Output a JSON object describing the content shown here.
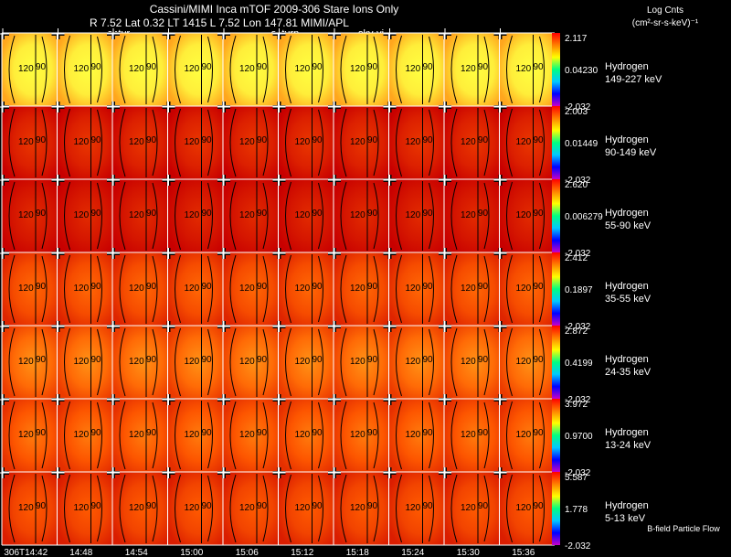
{
  "header": {
    "title": "Cassini/MIMI Inca mTOF  2009-306   Stare    Ions Only",
    "subtitle": "R       7.52 Lat 0.32 LT 1415 L        7.52 Lon          147.81   MIMI/APL",
    "overlay_words": [
      "satur",
      "saturn",
      "sky-vi"
    ],
    "units_title": "Log Cnts",
    "units_expr": "(cm²-sr-s-keV)⁻¹"
  },
  "chart_data": {
    "type": "heatmap",
    "title": "Cassini/MIMI Inca mTOF  2009-306   Stare    Ions Only",
    "species": "Hydrogen",
    "time_labels": [
      "306T14:42",
      "14:48",
      "14:54",
      "15:00",
      "15:06",
      "15:12",
      "15:18",
      "15:24",
      "15:30",
      "15:36"
    ],
    "panel_annotations": [
      "120",
      "90"
    ],
    "colors": {
      "hot": "#ffff40",
      "mid": "#ff5a00",
      "cold": "#c80000",
      "grid": "#ffffff",
      "contour": "#000000",
      "colorbar": [
        "#c800c8",
        "#0000ff",
        "#00c8ff",
        "#00ff80",
        "#ffff00",
        "#ff8000",
        "#ff0000"
      ]
    },
    "rows": [
      {
        "species": "Hydrogen",
        "energy": "149-227 keV",
        "cmax": "2.117",
        "cmid": "0.04230",
        "cmin": "-2.032",
        "level": 0.95,
        "mirror_bias": 0.2
      },
      {
        "species": "Hydrogen",
        "energy": "90-149 keV",
        "cmax": "2.003",
        "cmid": "0.01449",
        "cmin": "-2.032",
        "level": 0.18,
        "mirror_bias": 0.0
      },
      {
        "species": "Hydrogen",
        "energy": "55-90 keV",
        "cmax": "2.620",
        "cmid": "0.006279",
        "cmin": "-2.032",
        "level": 0.12,
        "mirror_bias": -0.15
      },
      {
        "species": "Hydrogen",
        "energy": "35-55 keV",
        "cmax": "2.412",
        "cmid": "0.1897",
        "cmin": "-2.032",
        "level": 0.42,
        "mirror_bias": 0.0
      },
      {
        "species": "Hydrogen",
        "energy": "24-35 keV",
        "cmax": "2.872",
        "cmid": "0.4199",
        "cmin": "-2.032",
        "level": 0.55,
        "mirror_bias": 0.0
      },
      {
        "species": "Hydrogen",
        "energy": "13-24 keV",
        "cmax": "3.972",
        "cmid": "0.9700",
        "cmin": "-2.032",
        "level": 0.48,
        "mirror_bias": 0.0
      },
      {
        "species": "Hydrogen",
        "energy": "5-13 keV",
        "cmax": "5.587",
        "cmid": "1.778",
        "cmin": "-2.032",
        "level": 0.38,
        "mirror_bias": 0.0
      }
    ]
  },
  "footer": {
    "note": "B-field Particle Flow"
  }
}
